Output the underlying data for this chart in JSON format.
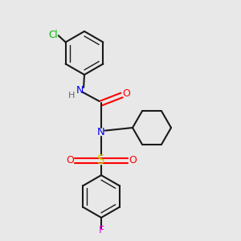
{
  "bg_color": "#e8e8e8",
  "bond_color": "#1a1a1a",
  "N_color": "#0000ff",
  "O_color": "#ff0000",
  "S_color": "#cccc00",
  "Cl_color": "#00bb00",
  "F_color": "#ee00ee",
  "H_color": "#666666",
  "fig_w": 3.0,
  "fig_h": 3.0,
  "dpi": 100,
  "xlim": [
    0,
    10
  ],
  "ylim": [
    0,
    10
  ]
}
